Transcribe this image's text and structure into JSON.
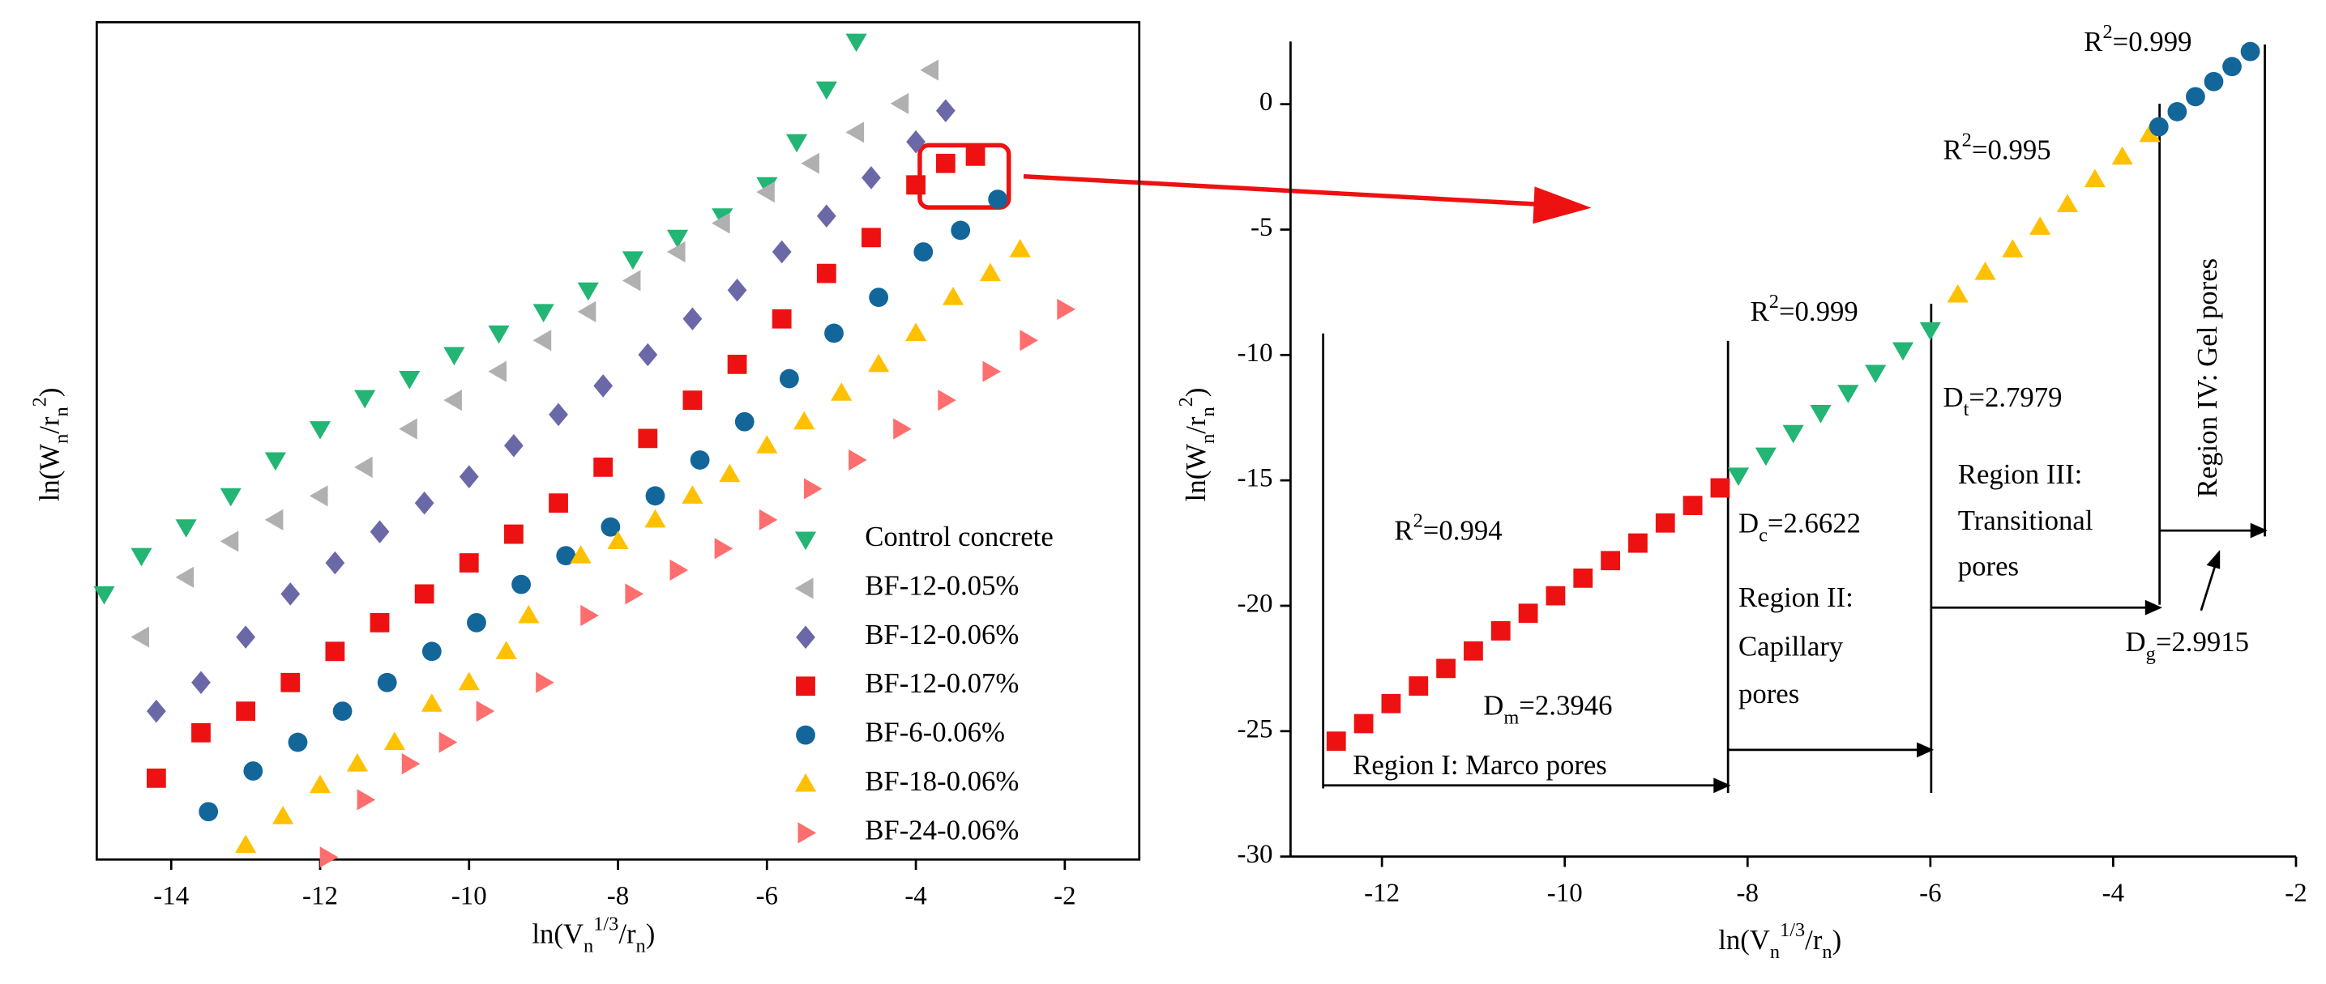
{
  "chart_data": [
    {
      "type": "scatter",
      "x_label": [
        {
          "text": "ln(V"
        },
        {
          "text": "n",
          "shift": "sub"
        },
        {
          "text": "1/3",
          "shift": "super"
        },
        {
          "text": "/r"
        },
        {
          "text": "n",
          "shift": "sub"
        },
        {
          "text": ")"
        }
      ],
      "y_label": [
        {
          "text": "ln(W"
        },
        {
          "text": "n",
          "shift": "sub"
        },
        {
          "text": "/r"
        },
        {
          "text": "n",
          "shift": "sub"
        },
        {
          "text": "2",
          "shift": "super"
        },
        {
          "text": ")"
        }
      ],
      "xlim": [
        -15,
        -1
      ],
      "ylim": [
        -30,
        5
      ],
      "xticks": [
        -14,
        -12,
        -10,
        -8,
        -6,
        -4,
        -2
      ],
      "legend": "lower right",
      "series": [
        {
          "name": "Control concrete",
          "color": "#22b573",
          "marker": "v",
          "x": [
            -14.9,
            -14.4,
            -13.8,
            -13.2,
            -12.6,
            -12.0,
            -11.4,
            -10.8,
            -10.2,
            -9.6,
            -9.0,
            -8.4,
            -7.8,
            -7.2,
            -6.6,
            -6.0,
            -5.6,
            -5.2,
            -4.8
          ],
          "values": [
            -18.9,
            -17.3,
            -16.1,
            -14.8,
            -13.3,
            -12.0,
            -10.7,
            -9.9,
            -8.9,
            -8.0,
            -7.1,
            -6.2,
            -4.9,
            -4.0,
            -3.1,
            -1.8,
            0.0,
            2.2,
            4.2
          ]
        },
        {
          "name": "BF-12-0.05%",
          "color": "#b0b0b0",
          "marker": "<",
          "x": [
            -14.4,
            -13.8,
            -13.2,
            -12.6,
            -12.0,
            -11.4,
            -10.8,
            -10.2,
            -9.6,
            -9.0,
            -8.4,
            -7.8,
            -7.2,
            -6.6,
            -6.0,
            -5.4,
            -4.8,
            -4.2,
            -3.8
          ],
          "values": [
            -20.7,
            -18.2,
            -16.7,
            -15.8,
            -14.8,
            -13.6,
            -12.0,
            -10.8,
            -9.6,
            -8.3,
            -7.1,
            -5.8,
            -4.6,
            -3.4,
            -2.1,
            -0.9,
            0.4,
            1.6,
            3.0
          ]
        },
        {
          "name": "BF-12-0.06%",
          "color": "#6b68a8",
          "marker": "D",
          "x": [
            -14.2,
            -13.6,
            -13.0,
            -12.4,
            -11.8,
            -11.2,
            -10.6,
            -10.0,
            -9.4,
            -8.8,
            -8.2,
            -7.6,
            -7.0,
            -6.4,
            -5.8,
            -5.2,
            -4.6,
            -4.0,
            -3.6
          ],
          "values": [
            -23.8,
            -22.6,
            -20.7,
            -18.9,
            -17.6,
            -16.3,
            -15.1,
            -14.0,
            -12.7,
            -11.4,
            -10.2,
            -8.9,
            -7.4,
            -6.2,
            -4.6,
            -3.1,
            -1.5,
            0.0,
            1.3
          ]
        },
        {
          "name": "BF-12-0.07%",
          "color": "#ee1111",
          "marker": "s",
          "x": [
            -14.2,
            -13.6,
            -13.0,
            -12.4,
            -11.8,
            -11.2,
            -10.6,
            -10.0,
            -9.4,
            -8.8,
            -8.2,
            -7.6,
            -7.0,
            -6.4,
            -5.8,
            -5.2,
            -4.6,
            -4.0,
            -3.6,
            -3.2
          ],
          "values": [
            -26.6,
            -24.7,
            -23.8,
            -22.6,
            -21.3,
            -20.1,
            -18.9,
            -17.6,
            -16.4,
            -15.1,
            -13.6,
            -12.4,
            -10.8,
            -9.3,
            -7.4,
            -5.5,
            -4.0,
            -1.8,
            -0.9,
            -0.6
          ]
        },
        {
          "name": "BF-6-0.06%",
          "color": "#13669a",
          "marker": "o",
          "x": [
            -13.5,
            -12.9,
            -12.3,
            -11.7,
            -11.1,
            -10.5,
            -9.9,
            -9.3,
            -8.7,
            -8.1,
            -7.5,
            -6.9,
            -6.3,
            -5.7,
            -5.1,
            -4.5,
            -3.9,
            -3.4,
            -2.9
          ],
          "values": [
            -28.0,
            -26.3,
            -25.1,
            -23.8,
            -22.6,
            -21.3,
            -20.1,
            -18.5,
            -17.3,
            -16.1,
            -14.8,
            -13.3,
            -11.7,
            -9.9,
            -8.0,
            -6.5,
            -4.6,
            -3.7,
            -2.4
          ]
        },
        {
          "name": "BF-18-0.06%",
          "color": "#ffc000",
          "marker": "^",
          "x": [
            -13.0,
            -12.5,
            -12.0,
            -11.5,
            -11.0,
            -10.5,
            -10.0,
            -9.5,
            -9.2,
            -8.5,
            -8.0,
            -7.5,
            -7.0,
            -6.5,
            -6.0,
            -5.5,
            -5.0,
            -4.5,
            -4.0,
            -3.5,
            -3.0,
            -2.6
          ],
          "values": [
            -29.4,
            -28.2,
            -26.9,
            -26.0,
            -25.1,
            -23.5,
            -22.6,
            -21.3,
            -19.8,
            -17.3,
            -16.7,
            -15.8,
            -14.8,
            -13.9,
            -12.7,
            -11.7,
            -10.5,
            -9.3,
            -8.0,
            -6.5,
            -5.5,
            -4.5
          ]
        },
        {
          "name": "BF-24-0.06%",
          "color": "#ff6e6e",
          "marker": ">",
          "x": [
            -11.9,
            -11.4,
            -10.8,
            -10.3,
            -9.8,
            -9.0,
            -8.4,
            -7.8,
            -7.2,
            -6.6,
            -6.0,
            -5.4,
            -4.8,
            -4.2,
            -3.6,
            -3.0,
            -2.5,
            -2.0
          ],
          "values": [
            -29.9,
            -27.5,
            -26.0,
            -25.1,
            -23.8,
            -22.6,
            -19.8,
            -18.9,
            -17.9,
            -17.0,
            -15.8,
            -14.5,
            -13.3,
            -12.0,
            -10.8,
            -9.6,
            -8.3,
            -7.0
          ]
        }
      ]
    },
    {
      "type": "scatter",
      "x_label": [
        {
          "text": "ln(V"
        },
        {
          "text": "n",
          "shift": "sub"
        },
        {
          "text": "1/3",
          "shift": "super"
        },
        {
          "text": "/r"
        },
        {
          "text": "n",
          "shift": "sub"
        },
        {
          "text": ")"
        }
      ],
      "y_label": [
        {
          "text": "ln(W"
        },
        {
          "text": "n",
          "shift": "sub"
        },
        {
          "text": "/r"
        },
        {
          "text": "n",
          "shift": "sub"
        },
        {
          "text": "2",
          "shift": "super"
        },
        {
          "text": ")"
        }
      ],
      "xlim": [
        -13,
        -2
      ],
      "ylim": [
        -30,
        2.5
      ],
      "xticks": [
        -12,
        -10,
        -8,
        -6,
        -4,
        -2
      ],
      "yticks": [
        -30,
        -25,
        -20,
        -15,
        -10,
        -5,
        0
      ],
      "series": [
        {
          "color": "#ee1111",
          "marker": "s",
          "x": [
            -12.5,
            -12.2,
            -11.9,
            -11.6,
            -11.3,
            -11.0,
            -10.7,
            -10.4,
            -10.1,
            -9.8,
            -9.5,
            -9.2,
            -8.9,
            -8.6,
            -8.3
          ],
          "values": [
            -25.4,
            -24.7,
            -23.9,
            -23.2,
            -22.5,
            -21.8,
            -21.0,
            -20.3,
            -19.6,
            -18.9,
            -18.2,
            -17.5,
            -16.7,
            -16.0,
            -15.3
          ]
        },
        {
          "color": "#22b573",
          "marker": "v",
          "x": [
            -8.1,
            -7.8,
            -7.5,
            -7.2,
            -6.9,
            -6.6,
            -6.3,
            -6.0
          ],
          "values": [
            -14.8,
            -14.0,
            -13.1,
            -12.3,
            -11.5,
            -10.7,
            -9.8,
            -9.0
          ]
        },
        {
          "color": "#ffc000",
          "marker": "^",
          "x": [
            -5.7,
            -5.4,
            -5.1,
            -4.8,
            -4.5,
            -4.2,
            -3.9,
            -3.6
          ],
          "values": [
            -7.6,
            -6.7,
            -5.8,
            -4.9,
            -4.0,
            -3.0,
            -2.1,
            -1.2
          ]
        },
        {
          "color": "#13669a",
          "marker": "o",
          "x": [
            -3.5,
            -3.3,
            -3.1,
            -2.9,
            -2.7,
            -2.5
          ],
          "values": [
            -0.9,
            -0.3,
            0.3,
            0.9,
            1.5,
            2.1
          ]
        }
      ],
      "annotations": [
        {
          "color": "#ee1111",
          "parts": [
            {
              "text": "R"
            },
            {
              "text": "2",
              "shift": "super"
            },
            {
              "text": "=0.994"
            }
          ]
        },
        {
          "color": "#ee1111",
          "parts": [
            {
              "text": "D"
            },
            {
              "text": "m",
              "shift": "sub"
            },
            {
              "text": "=2.3946"
            }
          ]
        },
        {
          "color": "#000000",
          "parts": [
            {
              "text": "Region I: Marco pores"
            }
          ]
        },
        {
          "color": "#33ee33",
          "parts": [
            {
              "text": "R"
            },
            {
              "text": "2",
              "shift": "super"
            },
            {
              "text": "=0.999"
            }
          ]
        },
        {
          "color": "#1f9a2a",
          "parts": [
            {
              "text": "D"
            },
            {
              "text": "c",
              "shift": "sub"
            },
            {
              "text": "=2.6622"
            }
          ]
        },
        {
          "color": "#000000",
          "parts": [
            {
              "text": "Region II:"
            }
          ]
        },
        {
          "color": "#000000",
          "parts": [
            {
              "text": "Capillary"
            }
          ]
        },
        {
          "color": "#000000",
          "parts": [
            {
              "text": "pores"
            }
          ]
        },
        {
          "color": "#ff8c1a",
          "parts": [
            {
              "text": "R"
            },
            {
              "text": "2",
              "shift": "super"
            },
            {
              "text": "=0.995"
            }
          ]
        },
        {
          "color": "#ff8c1a",
          "parts": [
            {
              "text": "D"
            },
            {
              "text": "t",
              "shift": "sub"
            },
            {
              "text": "=2.7979"
            }
          ]
        },
        {
          "color": "#000000",
          "parts": [
            {
              "text": "Region III:"
            }
          ]
        },
        {
          "color": "#000000",
          "parts": [
            {
              "text": "Transitional"
            }
          ]
        },
        {
          "color": "#000000",
          "parts": [
            {
              "text": "pores"
            }
          ]
        },
        {
          "color": "#1a1aa6",
          "parts": [
            {
              "text": "R"
            },
            {
              "text": "2",
              "shift": "super"
            },
            {
              "text": "=0.999"
            }
          ]
        },
        {
          "color": "#1a1aa6",
          "parts": [
            {
              "text": "D"
            },
            {
              "text": "g",
              "shift": "sub"
            },
            {
              "text": "=2.9915"
            }
          ]
        },
        {
          "color": "#000000",
          "parts": [
            {
              "text": "Region IV: Gel pores"
            }
          ]
        }
      ]
    }
  ]
}
